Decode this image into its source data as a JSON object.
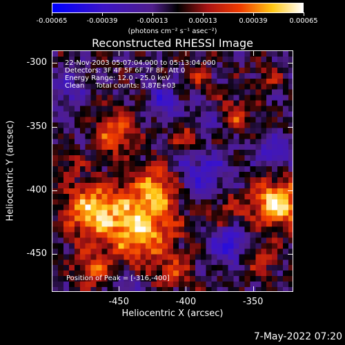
{
  "colorbar": {
    "tick_labels": [
      "-0.00065",
      "-0.00039",
      "-0.00013",
      "0.00013",
      "0.00039",
      "0.00065"
    ],
    "units_label": "(photons cm⁻² s⁻¹ asec⁻²)",
    "range": [
      -0.00065,
      0.00065
    ]
  },
  "title": "Reconstructed RHESSI Image",
  "info": {
    "line1": "22-Nov-2003 05:07:04.000 to 05:13:04.000",
    "line2": "Detectors: 3F 4F 5F 6F 7F 8F, Att 0",
    "line3": "Energy Range: 12.0 - 25.0 keV",
    "line4": "Clean     Total counts: 3.87E+03",
    "peak": "Position of Peak = [-316,-400]"
  },
  "axes": {
    "xlabel": "Heliocentric X (arcsec)",
    "ylabel": "Heliocentric Y (arcsec)",
    "xticks": [
      "-450",
      "-400",
      "-350"
    ],
    "yticks": [
      "-300",
      "-350",
      "-400",
      "-450"
    ],
    "xlim": [
      -500,
      -320
    ],
    "ylim": [
      -480,
      -290
    ]
  },
  "timestamp": "7-May-2022 07:20",
  "colors": {
    "background": "#000000",
    "foreground": "#ffffff"
  }
}
